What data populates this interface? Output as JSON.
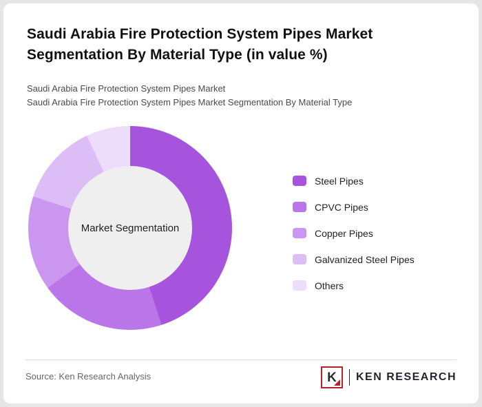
{
  "header": {
    "title": "Saudi Arabia Fire Protection System Pipes Market Segmentation By Material Type (in value %)",
    "subtitle1": "Saudi Arabia Fire Protection System Pipes Market",
    "subtitle2": "Saudi Arabia Fire Protection System Pipes Market Segmentation By Material Type"
  },
  "chart_data": {
    "type": "pie",
    "subtype": "donut",
    "title": "Saudi Arabia Fire Protection System Pipes Market Segmentation By Material Type (in value %)",
    "center_label": "Market Segmentation",
    "labels": [
      "Steel Pipes",
      "CPVC Pipes",
      "Copper Pipes",
      "Galvanized Steel Pipes",
      "Others"
    ],
    "values": [
      45,
      20,
      15,
      13,
      7
    ],
    "colors": [
      "#A653DE",
      "#BA75E8",
      "#CB96EF",
      "#DDBDF5",
      "#EDDCFA"
    ],
    "hole_color": "#efefef",
    "legend_position": "right",
    "start_angle_deg": 0,
    "direction": "clockwise"
  },
  "footer": {
    "source": "Source: Ken Research Analysis",
    "logo": {
      "letter": "K",
      "text": "KEN RESEARCH"
    }
  }
}
